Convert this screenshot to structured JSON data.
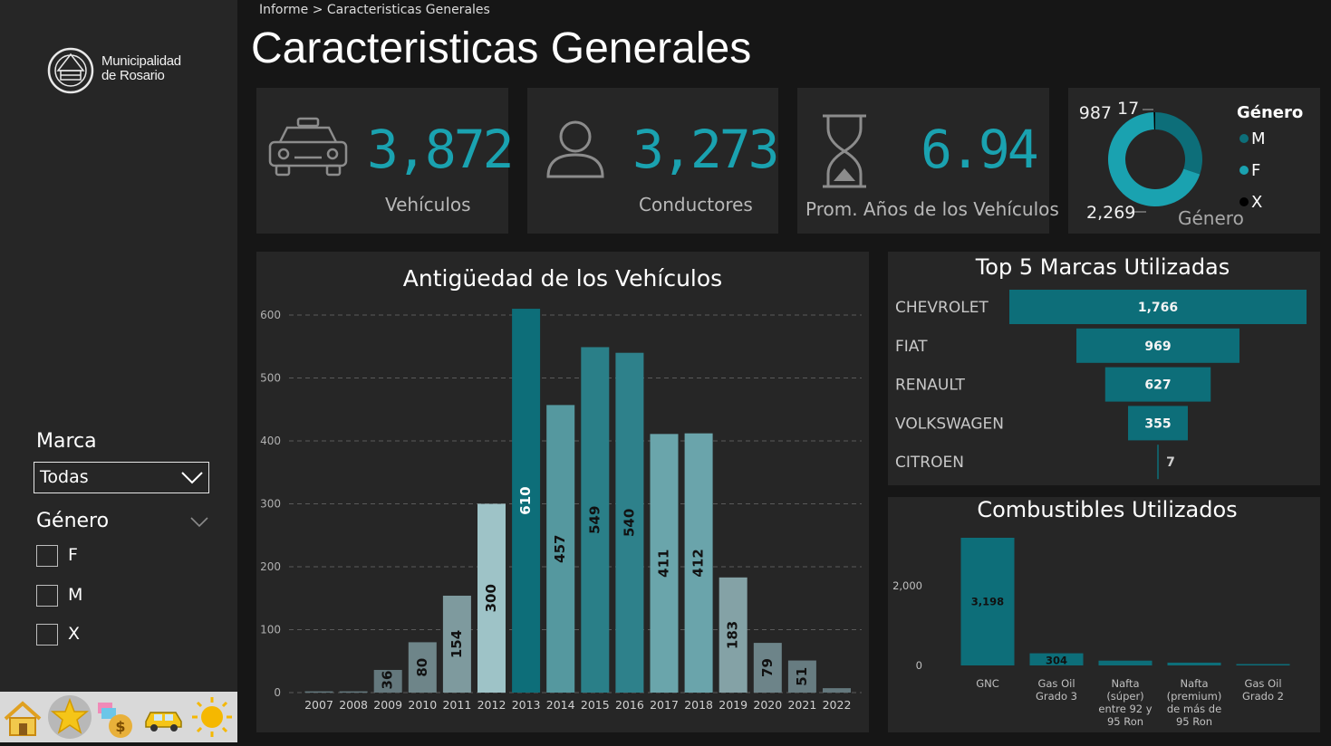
{
  "breadcrumb": {
    "root": "Informe",
    "separator": ">",
    "current": "Caracteristicas Generales"
  },
  "page_title": "Caracteristicas Generales",
  "logo": {
    "line1": "Municipalidad",
    "line2": "de Rosario"
  },
  "filters": {
    "marca": {
      "title": "Marca",
      "selected": "Todas"
    },
    "genero": {
      "title": "Género",
      "options": [
        "F",
        "M",
        "X"
      ]
    }
  },
  "nav": [
    "home-icon",
    "star-icon",
    "money-icon",
    "taxi-icon",
    "sun-icon"
  ],
  "kpis": {
    "vehiculos": {
      "value": "3,872",
      "label": "Vehículos"
    },
    "conductores": {
      "value": "3,273",
      "label": "Conductores"
    },
    "prom_anios": {
      "value": "6.94",
      "label": "Prom. Años de los Vehículos"
    }
  },
  "colors": {
    "accent": "#1aa2b0",
    "panel": "#262626",
    "background": "#161616",
    "teal_dark": "#0d6e79",
    "teal_light": "#9ec3c7"
  },
  "chart_data": [
    {
      "type": "pie",
      "variant": "donut",
      "legend_title": "Género",
      "bottom_label": "Género",
      "categories": [
        "M",
        "F",
        "X"
      ],
      "values": [
        987,
        2269,
        17
      ],
      "colors": [
        "#0d6e79",
        "#1aa2b0",
        "#000000"
      ]
    },
    {
      "type": "bar",
      "title": "Antigüedad de los Vehículos",
      "categories": [
        "2007",
        "2008",
        "2009",
        "2010",
        "2011",
        "2012",
        "2013",
        "2014",
        "2015",
        "2016",
        "2017",
        "2018",
        "2019",
        "2020",
        "2021",
        "2022"
      ],
      "values": [
        2,
        2,
        36,
        80,
        154,
        300,
        610,
        457,
        549,
        540,
        411,
        412,
        183,
        79,
        51,
        7
      ],
      "data_labels": [
        "",
        "",
        "36",
        "80",
        "154",
        "300",
        "610",
        "457",
        "549",
        "540",
        "411",
        "412",
        "183",
        "79",
        "51",
        ""
      ],
      "yticks": [
        0,
        100,
        200,
        300,
        400,
        500,
        600
      ],
      "ylim": [
        0,
        610
      ],
      "grid": true
    },
    {
      "type": "bar",
      "orientation": "funnel",
      "title": "Top 5 Marcas Utilizadas",
      "categories": [
        "CHEVROLET",
        "FIAT",
        "RENAULT",
        "VOLKSWAGEN",
        "CITROEN"
      ],
      "values": [
        1766,
        969,
        627,
        355,
        7
      ],
      "data_labels": [
        "1,766",
        "969",
        "627",
        "355",
        "7"
      ]
    },
    {
      "type": "bar",
      "title": "Combustibles Utilizados",
      "categories": [
        [
          "GNC"
        ],
        [
          "Gas Oil",
          "Grado 3"
        ],
        [
          "Nafta",
          "(súper)",
          "entre 92 y",
          "95 Ron"
        ],
        [
          "Nafta",
          "(premium)",
          "de más de",
          "95 Ron"
        ],
        [
          "Gas Oil",
          "Grado 2"
        ]
      ],
      "values": [
        3198,
        304,
        120,
        70,
        30
      ],
      "data_labels": [
        "3,198",
        "304",
        "",
        "",
        ""
      ],
      "yticks": [
        0,
        2000
      ],
      "ytick_labels": [
        "0",
        "2,000"
      ],
      "ylim": [
        0,
        3198
      ]
    }
  ]
}
